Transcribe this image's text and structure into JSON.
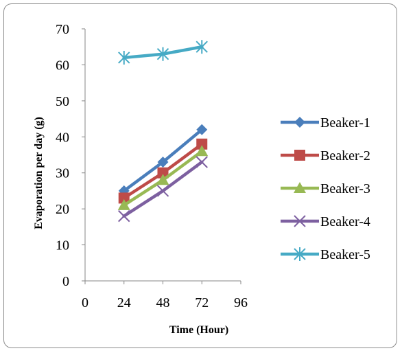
{
  "chart_data": {
    "type": "line",
    "title": "",
    "xlabel": "Time (Hour)",
    "ylabel": "Evaporation per day (g)",
    "xlim": [
      0,
      96
    ],
    "ylim": [
      0,
      70
    ],
    "xticks": [
      0,
      24,
      48,
      72,
      96
    ],
    "yticks": [
      0,
      10,
      20,
      30,
      40,
      50,
      60,
      70
    ],
    "grid": false,
    "legend_position": "right",
    "x": [
      24,
      48,
      72
    ],
    "series": [
      {
        "name": "Beaker-1",
        "values": [
          25,
          33,
          42
        ],
        "color": "#4a7ebb",
        "marker": "diamond"
      },
      {
        "name": "Beaker-2",
        "values": [
          23,
          30,
          38
        ],
        "color": "#be4b48",
        "marker": "square"
      },
      {
        "name": "Beaker-3",
        "values": [
          21,
          28,
          36
        ],
        "color": "#98b954",
        "marker": "triangle"
      },
      {
        "name": "Beaker-4",
        "values": [
          18,
          25,
          33
        ],
        "color": "#7d60a0",
        "marker": "x"
      },
      {
        "name": "Beaker-5",
        "values": [
          62,
          63,
          65
        ],
        "color": "#46aac5",
        "marker": "star"
      }
    ]
  }
}
